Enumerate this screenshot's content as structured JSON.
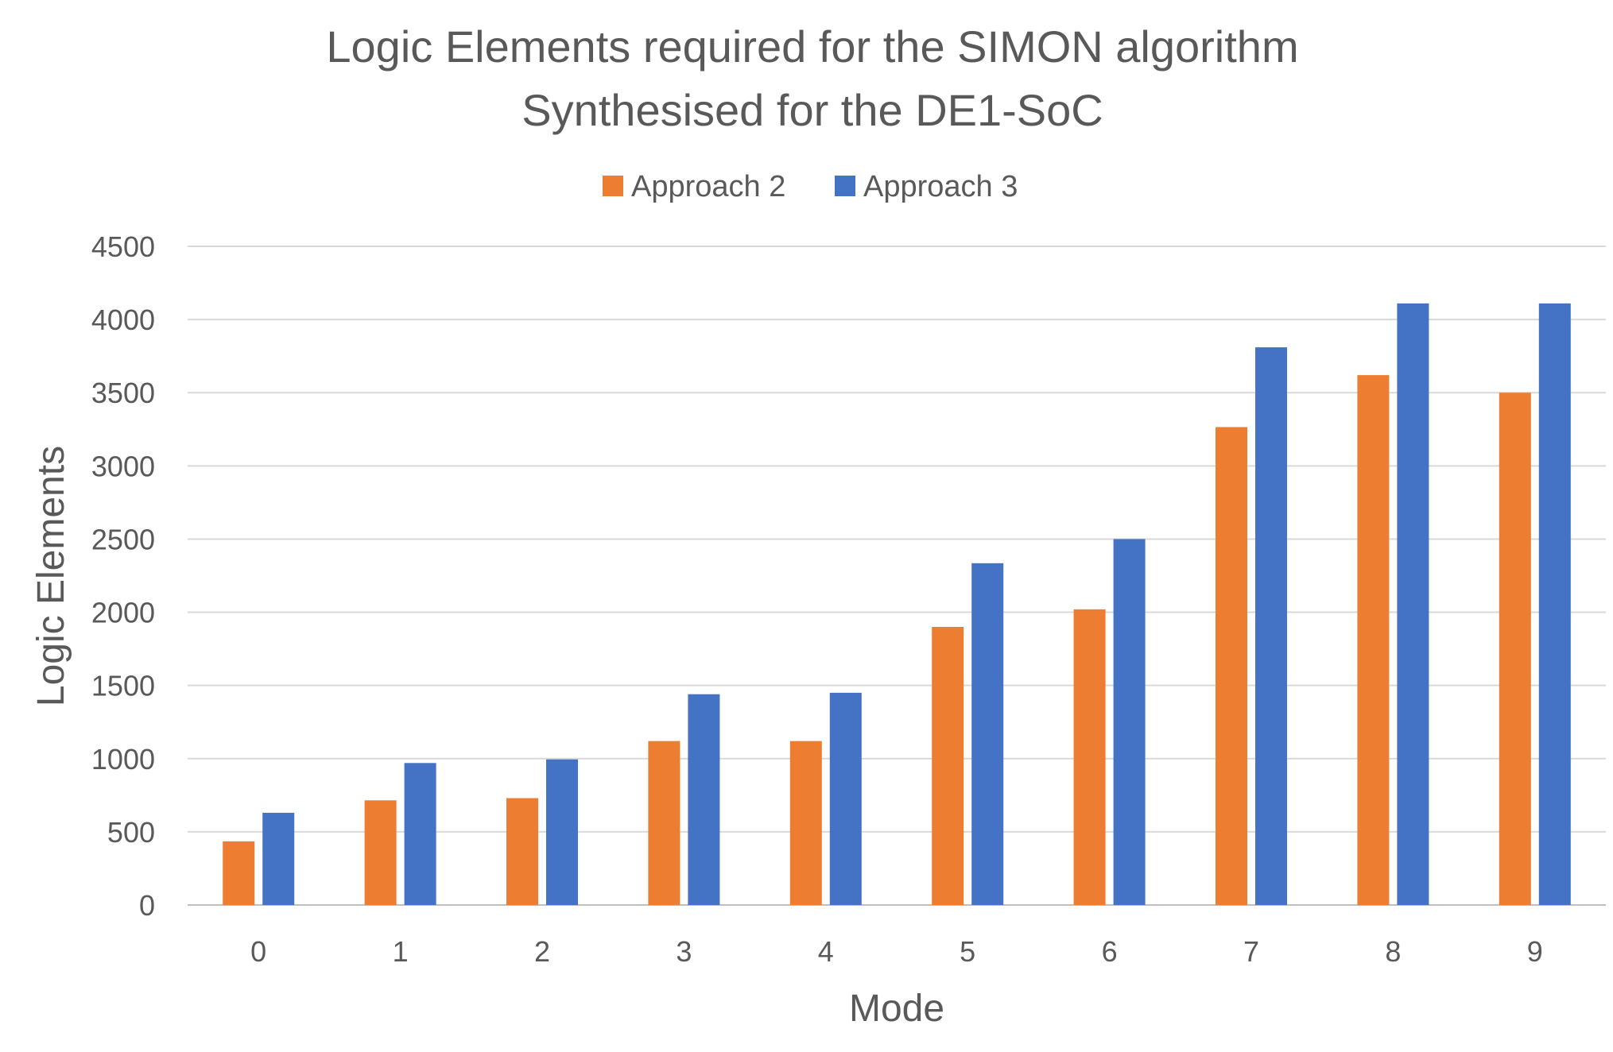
{
  "chart_data": {
    "type": "bar",
    "title": "Logic Elements required for the SIMON algorithm",
    "subtitle": "Synthesised for the DE1-SoC",
    "xlabel": "Mode",
    "ylabel": "Logic Elements",
    "categories": [
      "0",
      "1",
      "2",
      "3",
      "4",
      "5",
      "6",
      "7",
      "8",
      "9"
    ],
    "series": [
      {
        "name": "Approach 2",
        "color": "#ed7d31",
        "values": [
          435,
          715,
          730,
          1120,
          1120,
          1900,
          2020,
          3265,
          3620,
          3500
        ]
      },
      {
        "name": "Approach 3",
        "color": "#4472c4",
        "values": [
          630,
          970,
          995,
          1440,
          1450,
          2335,
          2500,
          3810,
          4110,
          4110
        ]
      }
    ],
    "ylim": [
      0,
      4500
    ],
    "yticks": [
      0,
      500,
      1000,
      1500,
      2000,
      2500,
      3000,
      3500,
      4000,
      4500
    ],
    "grid": true,
    "legend_position": "top"
  }
}
